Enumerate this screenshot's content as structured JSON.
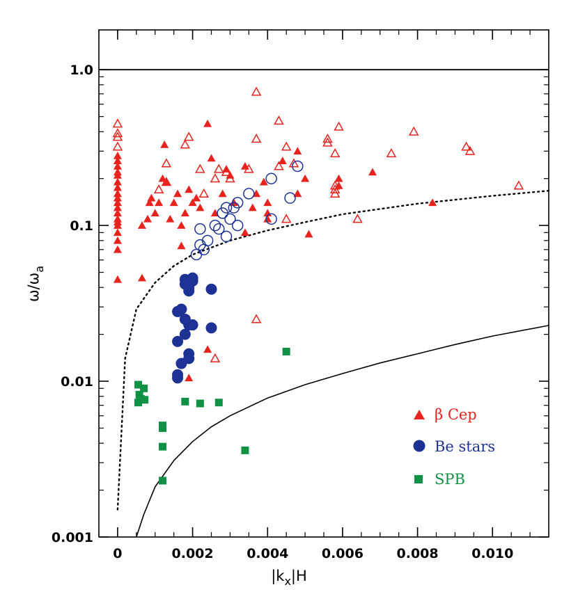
{
  "chart_data": {
    "type": "scatter",
    "xlabel": "|k",
    "xlabel_sub": "x",
    "xlabel_tail": "|H",
    "ylabel": "ω/ω",
    "ylabel_sub": "a",
    "y_scale": "log",
    "xlim": [
      -0.0005,
      0.0115
    ],
    "ylim": [
      0.001,
      1.8
    ],
    "x_ticks": [
      0,
      0.002,
      0.004,
      0.006,
      0.008,
      0.01
    ],
    "x_tick_labels": [
      "0",
      "0.002",
      "0.004",
      "0.006",
      "0.008",
      "0.010"
    ],
    "y_ticks": [
      0.001,
      0.01,
      0.1,
      1.0
    ],
    "y_tick_labels": [
      "0.001",
      "0.01",
      "0.1",
      "1.0"
    ],
    "grid": false,
    "legend_position": "bottom-right",
    "colors": {
      "beta_cep": "#e8231e",
      "be": "#1e3296",
      "spb": "#0f9146",
      "lines": "#000000"
    },
    "legend": [
      {
        "label": "β Cep",
        "marker": "triangle",
        "color": "#e8231e"
      },
      {
        "label": "Be stars",
        "marker": "circle",
        "color": "#1e3296"
      },
      {
        "label": "SPB",
        "marker": "square",
        "color": "#0f9146"
      }
    ],
    "reference_lines": [
      {
        "kind": "horizontal",
        "y": 1.0,
        "style": "solid"
      },
      {
        "kind": "curve",
        "style": "dotted",
        "x": [
          0.0,
          0.0002,
          0.0005,
          0.001,
          0.0015,
          0.002,
          0.003,
          0.004,
          0.005,
          0.006,
          0.008,
          0.01,
          0.0115
        ],
        "y": [
          0.0015,
          0.014,
          0.029,
          0.043,
          0.055,
          0.065,
          0.08,
          0.093,
          0.105,
          0.118,
          0.138,
          0.155,
          0.167
        ]
      },
      {
        "kind": "curve",
        "style": "solid",
        "x": [
          0.0005,
          0.0007,
          0.001,
          0.0015,
          0.002,
          0.0025,
          0.003,
          0.004,
          0.005,
          0.006,
          0.007,
          0.008,
          0.009,
          0.01,
          0.0115
        ],
        "y": [
          0.001,
          0.0014,
          0.0021,
          0.0031,
          0.0041,
          0.0051,
          0.006,
          0.0078,
          0.0095,
          0.0112,
          0.0131,
          0.015,
          0.0172,
          0.0195,
          0.0228
        ]
      }
    ],
    "series": [
      {
        "name": "β Cep",
        "marker": "triangle",
        "filled": [
          [
            0,
            0.045
          ],
          [
            0,
            0.07
          ],
          [
            0,
            0.08
          ],
          [
            0,
            0.09
          ],
          [
            0,
            0.1
          ],
          [
            0,
            0.105
          ],
          [
            0,
            0.11
          ],
          [
            0,
            0.12
          ],
          [
            0,
            0.13
          ],
          [
            0,
            0.14
          ],
          [
            0,
            0.15
          ],
          [
            0,
            0.16
          ],
          [
            0,
            0.175
          ],
          [
            0,
            0.19
          ],
          [
            0,
            0.21
          ],
          [
            0,
            0.22
          ],
          [
            0,
            0.24
          ],
          [
            0,
            0.26
          ],
          [
            0,
            0.28
          ],
          [
            0.00065,
            0.046
          ],
          [
            0.00065,
            0.1
          ],
          [
            0.0008,
            0.11
          ],
          [
            0.00085,
            0.14
          ],
          [
            0.0009,
            0.15
          ],
          [
            0.001,
            0.12
          ],
          [
            0.0011,
            0.14
          ],
          [
            0.0012,
            0.2
          ],
          [
            0.00125,
            0.33
          ],
          [
            0.0013,
            0.19
          ],
          [
            0.0014,
            0.11
          ],
          [
            0.0015,
            0.14
          ],
          [
            0.0016,
            0.16
          ],
          [
            0.0017,
            0.074
          ],
          [
            0.0017,
            0.1
          ],
          [
            0.0018,
            0.12
          ],
          [
            0.0019,
            0.17
          ],
          [
            0.002,
            0.14
          ],
          [
            0.0021,
            0.15
          ],
          [
            0.0022,
            0.13
          ],
          [
            0.0024,
            0.45
          ],
          [
            0.0024,
            0.016
          ],
          [
            0.0025,
            0.27
          ],
          [
            0.0026,
            0.12
          ],
          [
            0.0028,
            0.16
          ],
          [
            0.0029,
            0.23
          ],
          [
            0.003,
            0.21
          ],
          [
            0.0031,
            0.14
          ],
          [
            0.0034,
            0.09
          ],
          [
            0.0034,
            0.24
          ],
          [
            0.0036,
            0.13
          ],
          [
            0.0037,
            0.16
          ],
          [
            0.0039,
            0.19
          ],
          [
            0.004,
            0.14
          ],
          [
            0.004,
            0.12
          ],
          [
            0.004,
            0.11
          ],
          [
            0.0044,
            0.26
          ],
          [
            0.0048,
            0.3
          ],
          [
            0.0048,
            0.16
          ],
          [
            0.005,
            0.2
          ],
          [
            0.0051,
            0.088
          ],
          [
            0.0059,
            0.2
          ],
          [
            0.0059,
            0.18
          ],
          [
            0.0068,
            0.22
          ],
          [
            0.0084,
            0.14
          ],
          [
            0.0019,
            0.0105
          ]
        ],
        "open": [
          [
            0,
            0.45
          ],
          [
            0,
            0.39
          ],
          [
            0,
            0.37
          ],
          [
            0,
            0.32
          ],
          [
            0.0011,
            0.17
          ],
          [
            0.0013,
            0.25
          ],
          [
            0.0013,
            0.19
          ],
          [
            0.0018,
            0.33
          ],
          [
            0.0019,
            0.37
          ],
          [
            0.0022,
            0.23
          ],
          [
            0.0023,
            0.16
          ],
          [
            0.0026,
            0.2
          ],
          [
            0.0027,
            0.23
          ],
          [
            0.0029,
            0.22
          ],
          [
            0.003,
            0.2
          ],
          [
            0.0035,
            0.23
          ],
          [
            0.0037,
            0.72
          ],
          [
            0.0037,
            0.36
          ],
          [
            0.0037,
            0.025
          ],
          [
            0.0043,
            0.47
          ],
          [
            0.0043,
            0.24
          ],
          [
            0.0045,
            0.32
          ],
          [
            0.0045,
            0.11
          ],
          [
            0.0047,
            0.25
          ],
          [
            0.0056,
            0.36
          ],
          [
            0.0056,
            0.34
          ],
          [
            0.0058,
            0.29
          ],
          [
            0.0058,
            0.18
          ],
          [
            0.0058,
            0.17
          ],
          [
            0.0058,
            0.16
          ],
          [
            0.0059,
            0.43
          ],
          [
            0.0064,
            0.11
          ],
          [
            0.0073,
            0.29
          ],
          [
            0.0079,
            0.4
          ],
          [
            0.0093,
            0.32
          ],
          [
            0.0094,
            0.3
          ],
          [
            0.0107,
            0.18
          ],
          [
            0.0026,
            0.014
          ]
        ]
      },
      {
        "name": "Be stars",
        "marker": "circle",
        "filled": [
          [
            0.0018,
            0.045
          ],
          [
            0.0018,
            0.042
          ],
          [
            0.0019,
            0.038
          ],
          [
            0.0019,
            0.04
          ],
          [
            0.002,
            0.046
          ],
          [
            0.002,
            0.044
          ],
          [
            0.0025,
            0.039
          ],
          [
            0.0016,
            0.028
          ],
          [
            0.0017,
            0.029
          ],
          [
            0.0018,
            0.025
          ],
          [
            0.0019,
            0.023
          ],
          [
            0.002,
            0.023
          ],
          [
            0.0016,
            0.018
          ],
          [
            0.0018,
            0.02
          ],
          [
            0.0025,
            0.022
          ],
          [
            0.0017,
            0.013
          ],
          [
            0.0019,
            0.015
          ],
          [
            0.0019,
            0.014
          ],
          [
            0.0016,
            0.011
          ],
          [
            0.0016,
            0.0105
          ]
        ],
        "open": [
          [
            0.0021,
            0.065
          ],
          [
            0.0022,
            0.075
          ],
          [
            0.0023,
            0.07
          ],
          [
            0.0022,
            0.095
          ],
          [
            0.0024,
            0.08
          ],
          [
            0.0026,
            0.1
          ],
          [
            0.0027,
            0.095
          ],
          [
            0.0028,
            0.12
          ],
          [
            0.0029,
            0.13
          ],
          [
            0.0029,
            0.085
          ],
          [
            0.003,
            0.11
          ],
          [
            0.0031,
            0.13
          ],
          [
            0.0032,
            0.14
          ],
          [
            0.0032,
            0.1
          ],
          [
            0.0035,
            0.16
          ],
          [
            0.0041,
            0.2
          ],
          [
            0.0041,
            0.11
          ],
          [
            0.0046,
            0.15
          ],
          [
            0.0048,
            0.24
          ]
        ]
      },
      {
        "name": "SPB",
        "marker": "square",
        "filled": [
          [
            0.00055,
            0.0095
          ],
          [
            0.00058,
            0.0082
          ],
          [
            0.00062,
            0.0077
          ],
          [
            0.00055,
            0.0073
          ],
          [
            0.0007,
            0.009
          ],
          [
            0.00072,
            0.0076
          ],
          [
            0.0012,
            0.0052
          ],
          [
            0.0012,
            0.005
          ],
          [
            0.0012,
            0.0038
          ],
          [
            0.0012,
            0.0023
          ],
          [
            0.0018,
            0.0074
          ],
          [
            0.0022,
            0.0072
          ],
          [
            0.0027,
            0.0073
          ],
          [
            0.0034,
            0.0036
          ],
          [
            0.0045,
            0.0155
          ]
        ]
      }
    ]
  }
}
